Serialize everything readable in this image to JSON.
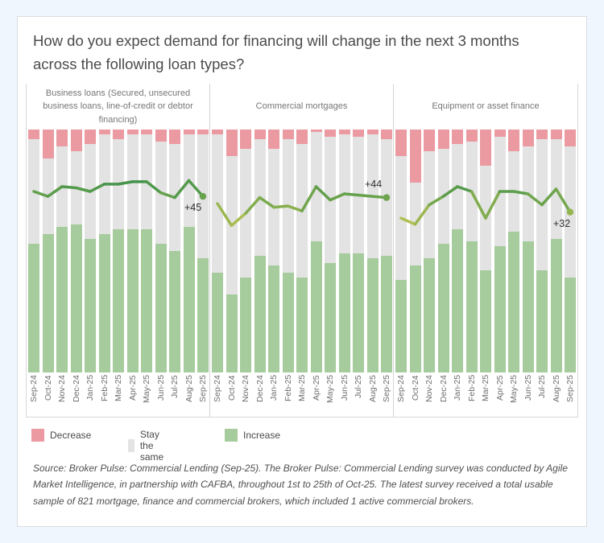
{
  "page": {
    "title": "How do you expect demand for financing will change in the next 3 months across the following loan types?"
  },
  "legend": [
    {
      "label": "Decrease",
      "color": "#eb9aa1"
    },
    {
      "label": "Stay the same",
      "color": "#e3e3e3"
    },
    {
      "label": "Increase",
      "color": "#a6cb9c"
    }
  ],
  "source_note": "Source: Broker Pulse: Commercial Lending (Sep-25). The Broker Pulse: Commercial Lending survey was conducted by Agile Market Intelligence, in partnership with CAFBA, throughout 1st to 25th of Oct-25. The latest survey received a total usable sample of 821 mortgage, finance and commercial brokers, which included 1 active commercial brokers.",
  "chart_data": {
    "type": "bar",
    "subtype": "100%-stacked-bars-with-net-line",
    "months": [
      "Sep-24",
      "Oct-24",
      "Nov-24",
      "Dec-24",
      "Jan-25",
      "Feb-25",
      "Mar-25",
      "Apr-25",
      "May-25",
      "Jun-25",
      "Jul-25",
      "Aug-25",
      "Sep-25"
    ],
    "stack_series": [
      "Decrease",
      "Stay the same",
      "Increase"
    ],
    "bar_axis_range": [
      0,
      100
    ],
    "net_line_range": [
      -100,
      100
    ],
    "colors": {
      "decrease": "#eb9aa1",
      "stay": "#e3e3e3",
      "increase": "#a6cb9c",
      "line_low": "#bdc553",
      "line_high": "#3e914a"
    },
    "panels": [
      {
        "title": "Business loans (Secured, unsecured business loans, line-of-credit or debtor financing)",
        "increase": [
          53,
          57,
          60,
          61,
          55,
          57,
          59,
          59,
          59,
          53,
          50,
          60,
          47
        ],
        "decrease": [
          4,
          12,
          7,
          9,
          6,
          2,
          4,
          2,
          2,
          5,
          6,
          2,
          2
        ],
        "net": [
          49,
          45,
          53,
          52,
          49,
          55,
          55,
          57,
          57,
          48,
          44,
          58,
          45
        ],
        "end_label": "+45"
      },
      {
        "title": "Commercial mortgages",
        "increase": [
          41,
          32,
          39,
          48,
          44,
          41,
          39,
          54,
          45,
          49,
          49,
          47,
          48
        ],
        "decrease": [
          2,
          11,
          8,
          4,
          8,
          4,
          6,
          1,
          3,
          2,
          3,
          2,
          4
        ],
        "net": [
          39,
          21,
          31,
          44,
          36,
          37,
          33,
          53,
          42,
          47,
          46,
          45,
          44
        ],
        "end_label": "+44"
      },
      {
        "title": "Equipment or asset finance",
        "increase": [
          38,
          44,
          47,
          53,
          59,
          54,
          42,
          52,
          58,
          54,
          42,
          55,
          39
        ],
        "decrease": [
          11,
          22,
          9,
          8,
          6,
          5,
          15,
          3,
          9,
          7,
          4,
          4,
          7
        ],
        "net": [
          27,
          22,
          38,
          45,
          53,
          49,
          27,
          49,
          49,
          47,
          38,
          51,
          32
        ],
        "end_label": "+32"
      }
    ]
  }
}
